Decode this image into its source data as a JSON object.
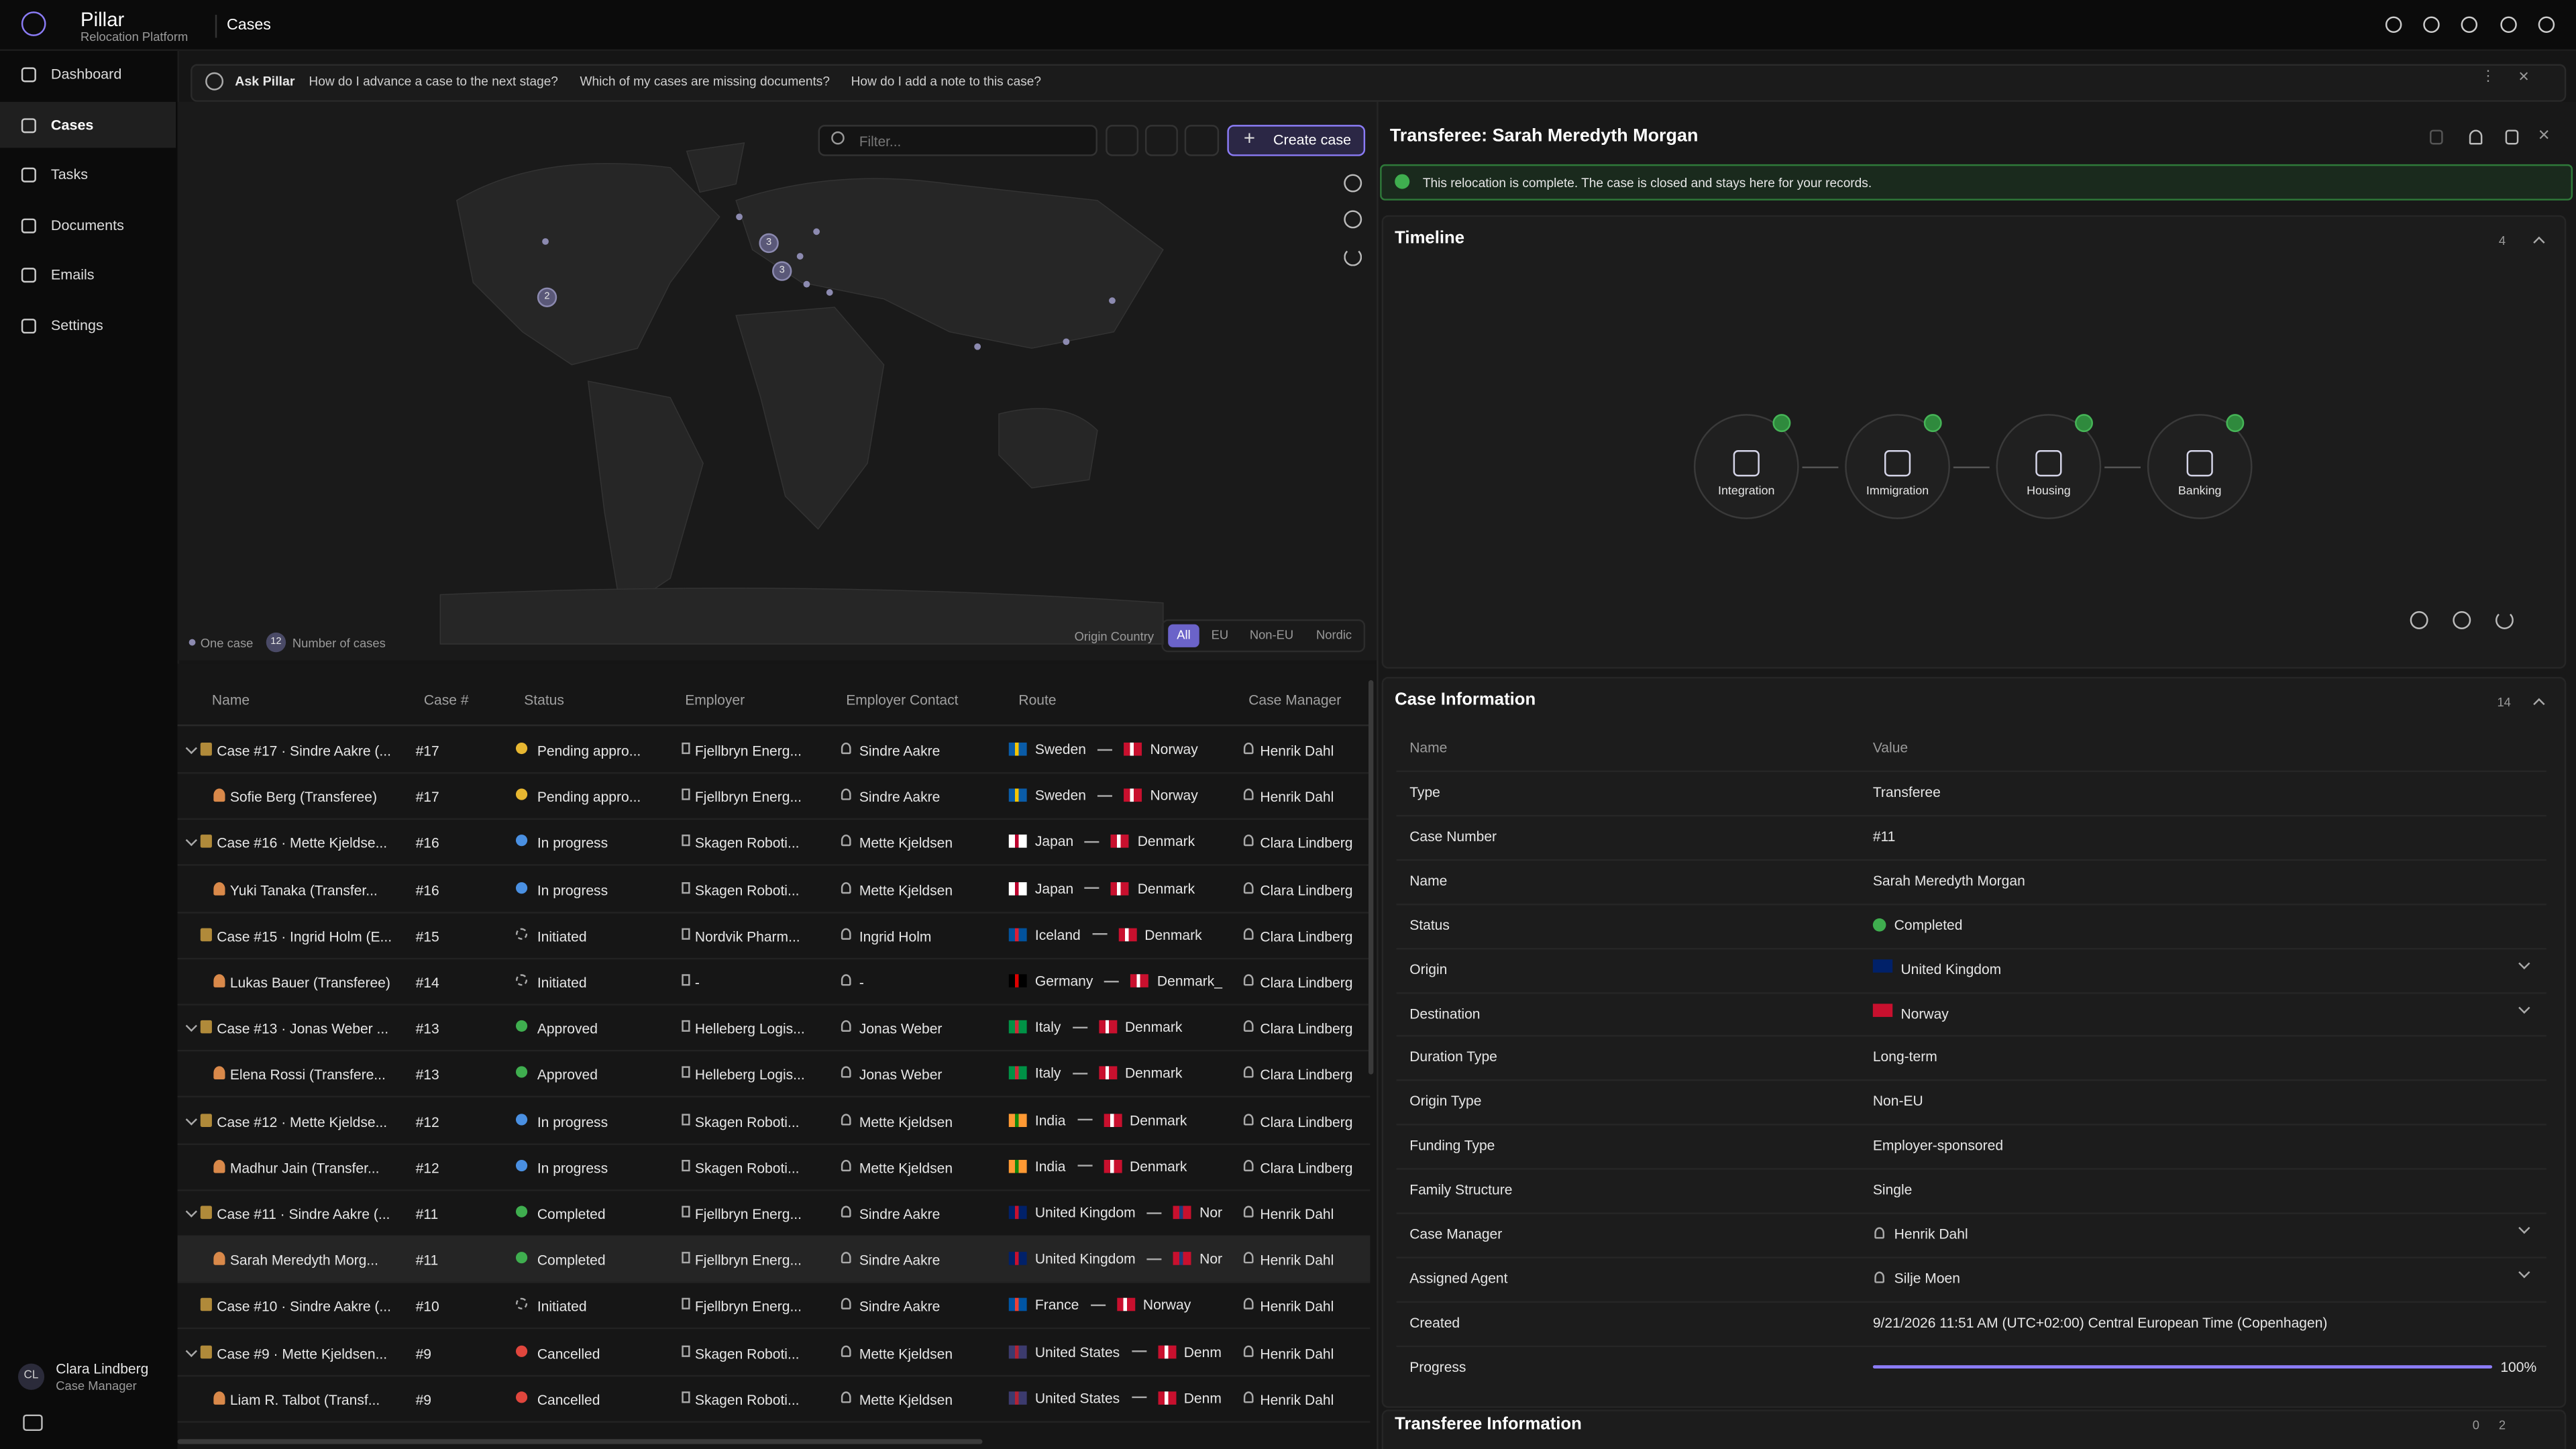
{
  "app": {
    "name": "Pillar",
    "subtitle": "Relocation Platform",
    "page_title": "Cases"
  },
  "nav": [
    "Dashboard",
    "Cases",
    "Tasks",
    "Documents",
    "Emails",
    "Settings"
  ],
  "user": {
    "name": "Clara Lindberg",
    "role": "Case Manager",
    "initials": "CL"
  },
  "ask": {
    "label": "Ask Pillar",
    "suggestions": [
      "How do I advance a case to the next stage?",
      "Which of my cases are missing documents?",
      "How do I add a note to this case?"
    ]
  },
  "toolbar": {
    "filter_placeholder": "Filter...",
    "create": "Create case"
  },
  "map": {
    "clusters": [
      3,
      3,
      2
    ],
    "legend_one": "One case",
    "legend_badge": 12,
    "legend_count": "Number of cases",
    "origin_label": "Origin Country",
    "filters": [
      "All",
      "EU",
      "Non-EU",
      "Nordic"
    ]
  },
  "table": {
    "columns": [
      "Name",
      "Case #",
      "Status",
      "Employer",
      "Employer Contact",
      "Route",
      "Case Manager"
    ],
    "rows": [
      {
        "name": "Case #17 · Sindre Aakre (...",
        "case": "#17",
        "status": "Pending appro...",
        "employer": "Fjellbryn Energ...",
        "contact": "Sindre Aakre",
        "from": "Sweden",
        "to": "Norway",
        "manager": "Henrik Dahl"
      },
      {
        "name": "Sofie Berg (Transferee)",
        "case": "#17",
        "status": "Pending appro...",
        "employer": "Fjellbryn Energ...",
        "contact": "Sindre Aakre",
        "from": "Sweden",
        "to": "Norway",
        "manager": "Henrik Dahl"
      },
      {
        "name": "Case #16 · Mette Kjeldse...",
        "case": "#16",
        "status": "In progress",
        "employer": "Skagen Roboti...",
        "contact": "Mette Kjeldsen",
        "from": "Japan",
        "to": "Denmark",
        "manager": "Clara Lindberg"
      },
      {
        "name": "Yuki Tanaka (Transfer...",
        "case": "#16",
        "status": "In progress",
        "employer": "Skagen Roboti...",
        "contact": "Mette Kjeldsen",
        "from": "Japan",
        "to": "Denmark",
        "manager": "Clara Lindberg"
      },
      {
        "name": "Case #15 · Ingrid Holm (E...",
        "case": "#15",
        "status": "Initiated",
        "employer": "Nordvik Pharm...",
        "contact": "Ingrid Holm",
        "from": "Iceland",
        "to": "Denmark",
        "manager": "Clara Lindberg"
      },
      {
        "name": "Lukas Bauer (Transferee)",
        "case": "#14",
        "status": "Initiated",
        "employer": "-",
        "contact": "-",
        "from": "Germany",
        "to": "Denmark_",
        "manager": "Clara Lindberg"
      },
      {
        "name": "Case #13 · Jonas Weber ...",
        "case": "#13",
        "status": "Approved",
        "employer": "Helleberg Logis...",
        "contact": "Jonas Weber",
        "from": "Italy",
        "to": "Denmark",
        "manager": "Clara Lindberg"
      },
      {
        "name": "Elena Rossi (Transfere...",
        "case": "#13",
        "status": "Approved",
        "employer": "Helleberg Logis...",
        "contact": "Jonas Weber",
        "from": "Italy",
        "to": "Denmark",
        "manager": "Clara Lindberg"
      },
      {
        "name": "Case #12 · Mette Kjeldse...",
        "case": "#12",
        "status": "In progress",
        "employer": "Skagen Roboti...",
        "contact": "Mette Kjeldsen",
        "from": "India",
        "to": "Denmark",
        "manager": "Clara Lindberg"
      },
      {
        "name": "Madhur Jain (Transfer...",
        "case": "#12",
        "status": "In progress",
        "employer": "Skagen Roboti...",
        "contact": "Mette Kjeldsen",
        "from": "India",
        "to": "Denmark",
        "manager": "Clara Lindberg"
      },
      {
        "name": "Case #11 · Sindre Aakre (...",
        "case": "#11",
        "status": "Completed",
        "employer": "Fjellbryn Energ...",
        "contact": "Sindre Aakre",
        "from": "United Kingdom",
        "to": "Nor",
        "manager": "Henrik Dahl"
      },
      {
        "name": "Sarah Meredyth Morg...",
        "case": "#11",
        "status": "Completed",
        "employer": "Fjellbryn Energ...",
        "contact": "Sindre Aakre",
        "from": "United Kingdom",
        "to": "Nor",
        "manager": "Henrik Dahl"
      },
      {
        "name": "Case #10 · Sindre Aakre (...",
        "case": "#10",
        "status": "Initiated",
        "employer": "Fjellbryn Energ...",
        "contact": "Sindre Aakre",
        "from": "France",
        "to": "Norway",
        "manager": "Henrik Dahl"
      },
      {
        "name": "Case #9 · Mette Kjeldsen...",
        "case": "#9",
        "status": "Cancelled",
        "employer": "Skagen Roboti...",
        "contact": "Mette Kjeldsen",
        "from": "United States",
        "to": "Denm",
        "manager": "Henrik Dahl"
      },
      {
        "name": "Liam R. Talbot (Transf...",
        "case": "#9",
        "status": "Cancelled",
        "employer": "Skagen Roboti...",
        "contact": "Mette Kjeldsen",
        "from": "United States",
        "to": "Denm",
        "manager": "Henrik Dahl"
      }
    ],
    "status_colors": {
      "Pending appro...": "#e7b731",
      "In progress": "#4a90e2",
      "Initiated": "#9a9a9a",
      "Approved": "#3fae4f",
      "Completed": "#3fae4f",
      "Cancelled": "#e0463d"
    },
    "flags": {
      "Sweden": [
        "#0a5ca8",
        "#f5c400"
      ],
      "Norway": [
        "#c8102e",
        "#ffffff"
      ],
      "Japan": [
        "#ffffff",
        "#bc002d"
      ],
      "Denmark": [
        "#c8102e",
        "#ffffff"
      ],
      "Denmark_": [
        "#c8102e",
        "#ffffff"
      ],
      "Denm": [
        "#c8102e",
        "#ffffff"
      ],
      "Nor": [
        "#c8102e",
        "#1f3d7a"
      ],
      "Iceland": [
        "#02529c",
        "#dc1e35"
      ],
      "Germany": [
        "#000000",
        "#dd0000"
      ],
      "Italy": [
        "#009246",
        "#ce2b37"
      ],
      "India": [
        "#ff9933",
        "#138808"
      ],
      "United Kingdom": [
        "#012169",
        "#c8102e"
      ],
      "France": [
        "#0055a4",
        "#ef4135"
      ],
      "United States": [
        "#3c3b6e",
        "#b22234"
      ]
    }
  },
  "detail": {
    "title": "Transferee: Sarah Meredyth Morgan",
    "banner": "This relocation is complete. The case is closed and stays here for your records.",
    "timeline": {
      "title": "Timeline",
      "count": 4,
      "steps": [
        "Integration",
        "Immigration",
        "Housing",
        "Banking"
      ]
    },
    "info": {
      "title": "Case Information",
      "count": 14,
      "columns": [
        "Name",
        "Value"
      ],
      "rows": [
        [
          "Type",
          "Transferee"
        ],
        [
          "Case Number",
          "#11"
        ],
        [
          "Name",
          "Sarah Meredyth Morgan"
        ],
        [
          "Status",
          "Completed"
        ],
        [
          "Origin",
          "United Kingdom"
        ],
        [
          "Destination",
          "Norway"
        ],
        [
          "Duration Type",
          "Long-term"
        ],
        [
          "Origin Type",
          "Non-EU"
        ],
        [
          "Funding Type",
          "Employer-sponsored"
        ],
        [
          "Family Structure",
          "Single"
        ],
        [
          "Case Manager",
          "Henrik Dahl"
        ],
        [
          "Assigned Agent",
          "Silje Moen"
        ],
        [
          "Created",
          "9/21/2026 11:51 AM (UTC+02:00) Central European Time (Copenhagen)"
        ],
        [
          "Progress",
          "100%"
        ]
      ]
    },
    "transferee": {
      "title": "Transferee Information",
      "count_a": 0,
      "count_b": 2
    }
  }
}
